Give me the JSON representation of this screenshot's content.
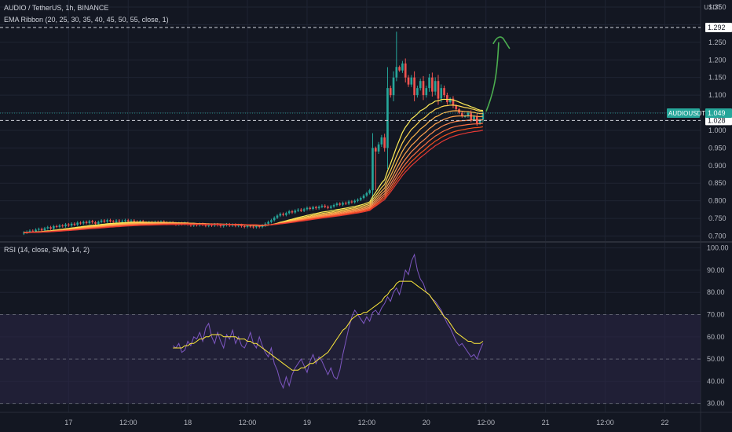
{
  "header": {
    "title": "AUDIO / TetherUS, 1h, BINANCE",
    "ema_legend": "EMA Ribbon (20, 25, 30, 35, 40, 45, 50, 55, close, 1)",
    "rsi_legend": "RSI (14, close, SMA, 14, 2)",
    "currency_top": "USDT",
    "currency_mid": "USDT"
  },
  "colors": {
    "background": "#131722",
    "up": "#26a69a",
    "down": "#ef5350",
    "rsi": "#7e57c2",
    "rsi_ma": "#ffeb3b",
    "arrow": "#4caf50",
    "rsi_band": "#2a2444"
  },
  "chart_data": [
    {
      "type": "candlestick",
      "symbol": "AUDIOUSDT",
      "price_ticks": [
        0.7,
        0.75,
        0.8,
        0.85,
        0.9,
        0.95,
        1.0,
        1.05,
        1.1,
        1.15,
        1.2,
        1.25,
        1.3,
        1.35
      ],
      "price_tick_labels": [
        "0.700",
        "0.750",
        "0.800",
        "0.850",
        "0.900",
        "0.950",
        "1.000",
        "",
        "1.100",
        "1.150",
        "1.200",
        "1.250",
        "",
        "1.350"
      ],
      "ylim": [
        0.69,
        1.37
      ],
      "x_ticks": [
        {
          "label": "17",
          "i": 15
        },
        {
          "label": "12:00",
          "i": 35
        },
        {
          "label": "18",
          "i": 55
        },
        {
          "label": "12:00",
          "i": 75
        },
        {
          "label": "19",
          "i": 95
        },
        {
          "label": "12:00",
          "i": 115
        },
        {
          "label": "20",
          "i": 135
        },
        {
          "label": "12:00",
          "i": 155
        },
        {
          "label": "21",
          "i": 175
        },
        {
          "label": "12:00",
          "i": 195
        },
        {
          "label": "22",
          "i": 215
        }
      ],
      "xlim": [
        -8,
        227
      ],
      "closes": [
        0.71,
        0.712,
        0.715,
        0.713,
        0.718,
        0.72,
        0.716,
        0.722,
        0.725,
        0.721,
        0.728,
        0.726,
        0.73,
        0.728,
        0.733,
        0.73,
        0.735,
        0.732,
        0.738,
        0.736,
        0.74,
        0.737,
        0.742,
        0.739,
        0.735,
        0.74,
        0.744,
        0.741,
        0.745,
        0.742,
        0.74,
        0.744,
        0.741,
        0.743,
        0.745,
        0.742,
        0.744,
        0.741,
        0.739,
        0.742,
        0.738,
        0.735,
        0.739,
        0.736,
        0.74,
        0.737,
        0.741,
        0.738,
        0.735,
        0.738,
        0.736,
        0.733,
        0.736,
        0.734,
        0.737,
        0.733,
        0.73,
        0.733,
        0.731,
        0.734,
        0.732,
        0.729,
        0.732,
        0.73,
        0.733,
        0.731,
        0.728,
        0.731,
        0.733,
        0.73,
        0.732,
        0.729,
        0.731,
        0.728,
        0.726,
        0.729,
        0.727,
        0.725,
        0.728,
        0.726,
        0.73,
        0.735,
        0.74,
        0.745,
        0.752,
        0.758,
        0.763,
        0.76,
        0.765,
        0.77,
        0.767,
        0.772,
        0.775,
        0.772,
        0.776,
        0.78,
        0.777,
        0.782,
        0.779,
        0.783,
        0.786,
        0.783,
        0.78,
        0.784,
        0.788,
        0.792,
        0.789,
        0.794,
        0.792,
        0.798,
        0.796,
        0.8,
        0.803,
        0.808,
        0.815,
        0.822,
        0.83,
        0.95,
        0.94,
        0.96,
        0.98,
        0.95,
        1.12,
        1.1,
        1.15,
        1.18,
        1.17,
        1.19,
        1.15,
        1.13,
        1.15,
        1.1,
        1.12,
        1.14,
        1.1,
        1.12,
        1.15,
        1.11,
        1.14,
        1.09,
        1.12,
        1.1,
        1.08,
        1.09,
        1.07,
        1.06,
        1.05,
        1.04,
        1.04,
        1.05,
        1.03,
        1.04,
        1.02,
        1.03,
        1.049
      ],
      "last_price": 1.049,
      "last_price_label": "1.049",
      "hline_upper": 1.292,
      "hline_upper_label": "1.292",
      "hline_lower": 1.028,
      "hline_lower_label": "1.028",
      "ticker_label": "AUDIOUSDT"
    },
    {
      "type": "line",
      "name": "RSI",
      "ticks": [
        30,
        40,
        50,
        60,
        70,
        80,
        90,
        100
      ],
      "tick_labels": [
        "30.00",
        "40.00",
        "50.00",
        "60.00",
        "70.00",
        "80.00",
        "90.00",
        "100.00"
      ],
      "ylim": [
        26,
        102
      ],
      "band": [
        30,
        70
      ],
      "rsi": [
        56,
        55,
        57,
        53,
        54,
        58,
        56,
        60,
        59,
        62,
        58,
        64,
        66,
        60,
        57,
        62,
        58,
        55,
        61,
        59,
        63,
        57,
        60,
        56,
        55,
        58,
        62,
        57,
        55,
        60,
        56,
        53,
        51,
        55,
        48,
        45,
        40,
        37,
        42,
        38,
        43,
        46,
        48,
        50,
        47,
        44,
        49,
        52,
        48,
        51,
        49,
        46,
        43,
        46,
        42,
        41,
        45,
        52,
        58,
        64,
        69,
        72,
        70,
        68,
        66,
        69,
        67,
        71,
        72,
        70,
        73,
        75,
        78,
        76,
        80,
        82,
        79,
        84,
        90,
        88,
        94,
        97,
        90,
        86,
        84,
        80,
        79,
        77,
        76,
        74,
        72,
        69,
        66,
        64,
        61,
        58,
        56,
        57,
        55,
        53,
        51,
        52,
        50,
        54,
        57
      ],
      "rsi_ma": [
        55,
        55,
        55,
        55,
        56,
        56,
        57,
        57,
        58,
        59,
        59,
        60,
        60,
        61,
        61,
        61,
        61,
        60,
        60,
        60,
        60,
        60,
        59,
        59,
        59,
        58,
        58,
        57,
        57,
        56,
        55,
        54,
        53,
        52,
        51,
        50,
        49,
        48,
        47,
        46,
        45,
        45,
        45,
        46,
        46,
        47,
        48,
        48,
        49,
        50,
        51,
        52,
        53,
        55,
        57,
        59,
        61,
        63,
        64,
        66,
        68,
        69,
        70,
        70,
        71,
        71,
        72,
        73,
        74,
        75,
        76,
        78,
        79,
        81,
        82,
        84,
        85,
        85,
        85,
        85,
        85,
        84,
        83,
        82,
        81,
        80,
        79,
        77,
        75,
        73,
        71,
        69,
        68,
        66,
        64,
        62,
        61,
        60,
        59,
        58,
        58,
        57,
        57,
        57,
        58
      ]
    }
  ]
}
